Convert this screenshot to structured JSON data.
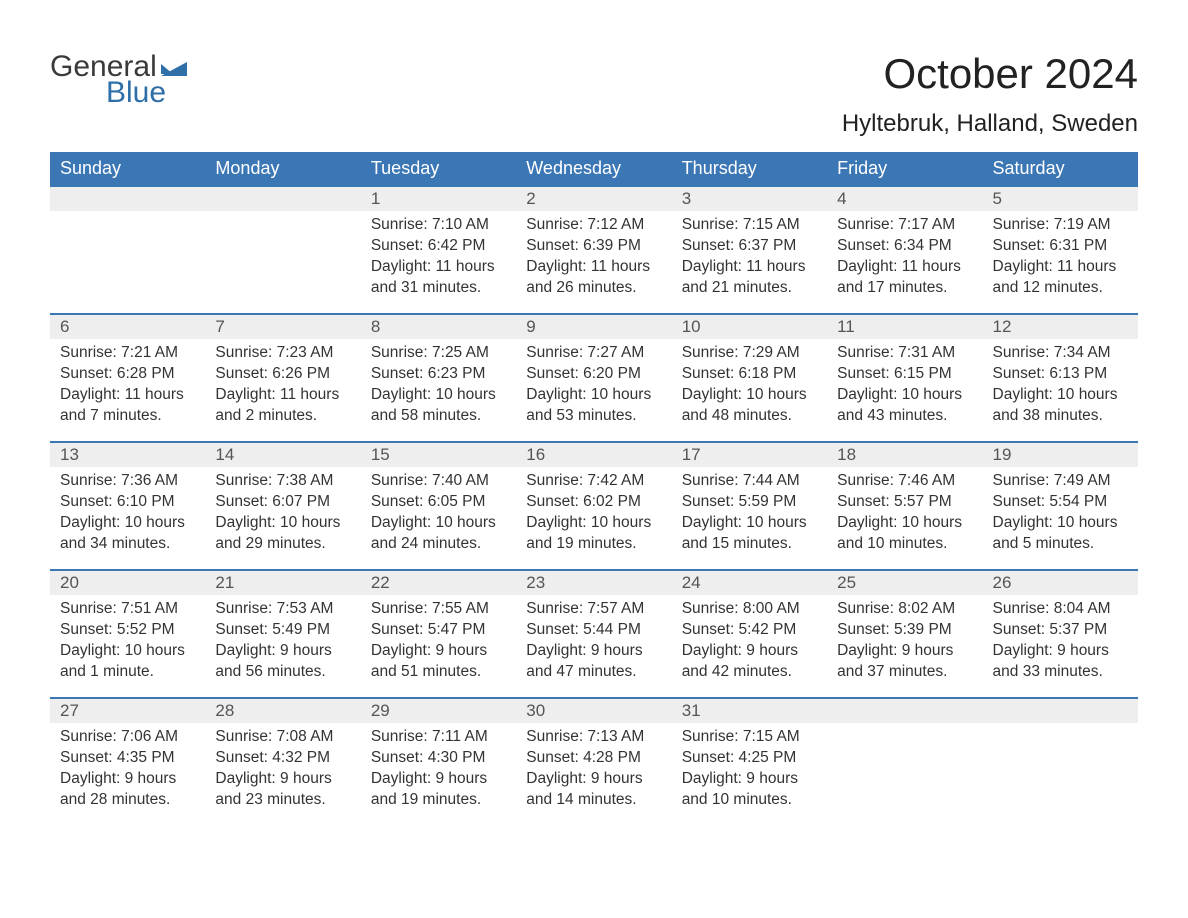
{
  "logo": {
    "word1": "General",
    "word2": "Blue",
    "flag_color": "#2f6fa7",
    "text_color_dark": "#3a3a3a"
  },
  "title": "October 2024",
  "location": "Hyltebruk, Halland, Sweden",
  "colors": {
    "header_bg": "#3b76b5",
    "header_text": "#ffffff",
    "daynum_bg": "#eeeeee",
    "day_border": "#3b76b5",
    "body_text": "#333333",
    "background": "#ffffff"
  },
  "days_of_week": [
    "Sunday",
    "Monday",
    "Tuesday",
    "Wednesday",
    "Thursday",
    "Friday",
    "Saturday"
  ],
  "layout": {
    "week_starts_on": "Sunday",
    "first_day_column_index": 2,
    "rows": 5,
    "cols": 7
  },
  "days": [
    {
      "n": 1,
      "sunrise": "7:10 AM",
      "sunset": "6:42 PM",
      "daylight": "11 hours and 31 minutes."
    },
    {
      "n": 2,
      "sunrise": "7:12 AM",
      "sunset": "6:39 PM",
      "daylight": "11 hours and 26 minutes."
    },
    {
      "n": 3,
      "sunrise": "7:15 AM",
      "sunset": "6:37 PM",
      "daylight": "11 hours and 21 minutes."
    },
    {
      "n": 4,
      "sunrise": "7:17 AM",
      "sunset": "6:34 PM",
      "daylight": "11 hours and 17 minutes."
    },
    {
      "n": 5,
      "sunrise": "7:19 AM",
      "sunset": "6:31 PM",
      "daylight": "11 hours and 12 minutes."
    },
    {
      "n": 6,
      "sunrise": "7:21 AM",
      "sunset": "6:28 PM",
      "daylight": "11 hours and 7 minutes."
    },
    {
      "n": 7,
      "sunrise": "7:23 AM",
      "sunset": "6:26 PM",
      "daylight": "11 hours and 2 minutes."
    },
    {
      "n": 8,
      "sunrise": "7:25 AM",
      "sunset": "6:23 PM",
      "daylight": "10 hours and 58 minutes."
    },
    {
      "n": 9,
      "sunrise": "7:27 AM",
      "sunset": "6:20 PM",
      "daylight": "10 hours and 53 minutes."
    },
    {
      "n": 10,
      "sunrise": "7:29 AM",
      "sunset": "6:18 PM",
      "daylight": "10 hours and 48 minutes."
    },
    {
      "n": 11,
      "sunrise": "7:31 AM",
      "sunset": "6:15 PM",
      "daylight": "10 hours and 43 minutes."
    },
    {
      "n": 12,
      "sunrise": "7:34 AM",
      "sunset": "6:13 PM",
      "daylight": "10 hours and 38 minutes."
    },
    {
      "n": 13,
      "sunrise": "7:36 AM",
      "sunset": "6:10 PM",
      "daylight": "10 hours and 34 minutes."
    },
    {
      "n": 14,
      "sunrise": "7:38 AM",
      "sunset": "6:07 PM",
      "daylight": "10 hours and 29 minutes."
    },
    {
      "n": 15,
      "sunrise": "7:40 AM",
      "sunset": "6:05 PM",
      "daylight": "10 hours and 24 minutes."
    },
    {
      "n": 16,
      "sunrise": "7:42 AM",
      "sunset": "6:02 PM",
      "daylight": "10 hours and 19 minutes."
    },
    {
      "n": 17,
      "sunrise": "7:44 AM",
      "sunset": "5:59 PM",
      "daylight": "10 hours and 15 minutes."
    },
    {
      "n": 18,
      "sunrise": "7:46 AM",
      "sunset": "5:57 PM",
      "daylight": "10 hours and 10 minutes."
    },
    {
      "n": 19,
      "sunrise": "7:49 AM",
      "sunset": "5:54 PM",
      "daylight": "10 hours and 5 minutes."
    },
    {
      "n": 20,
      "sunrise": "7:51 AM",
      "sunset": "5:52 PM",
      "daylight": "10 hours and 1 minute."
    },
    {
      "n": 21,
      "sunrise": "7:53 AM",
      "sunset": "5:49 PM",
      "daylight": "9 hours and 56 minutes."
    },
    {
      "n": 22,
      "sunrise": "7:55 AM",
      "sunset": "5:47 PM",
      "daylight": "9 hours and 51 minutes."
    },
    {
      "n": 23,
      "sunrise": "7:57 AM",
      "sunset": "5:44 PM",
      "daylight": "9 hours and 47 minutes."
    },
    {
      "n": 24,
      "sunrise": "8:00 AM",
      "sunset": "5:42 PM",
      "daylight": "9 hours and 42 minutes."
    },
    {
      "n": 25,
      "sunrise": "8:02 AM",
      "sunset": "5:39 PM",
      "daylight": "9 hours and 37 minutes."
    },
    {
      "n": 26,
      "sunrise": "8:04 AM",
      "sunset": "5:37 PM",
      "daylight": "9 hours and 33 minutes."
    },
    {
      "n": 27,
      "sunrise": "7:06 AM",
      "sunset": "4:35 PM",
      "daylight": "9 hours and 28 minutes."
    },
    {
      "n": 28,
      "sunrise": "7:08 AM",
      "sunset": "4:32 PM",
      "daylight": "9 hours and 23 minutes."
    },
    {
      "n": 29,
      "sunrise": "7:11 AM",
      "sunset": "4:30 PM",
      "daylight": "9 hours and 19 minutes."
    },
    {
      "n": 30,
      "sunrise": "7:13 AM",
      "sunset": "4:28 PM",
      "daylight": "9 hours and 14 minutes."
    },
    {
      "n": 31,
      "sunrise": "7:15 AM",
      "sunset": "4:25 PM",
      "daylight": "9 hours and 10 minutes."
    }
  ],
  "labels": {
    "sunrise_prefix": "Sunrise: ",
    "sunset_prefix": "Sunset: ",
    "daylight_prefix": "Daylight: "
  }
}
